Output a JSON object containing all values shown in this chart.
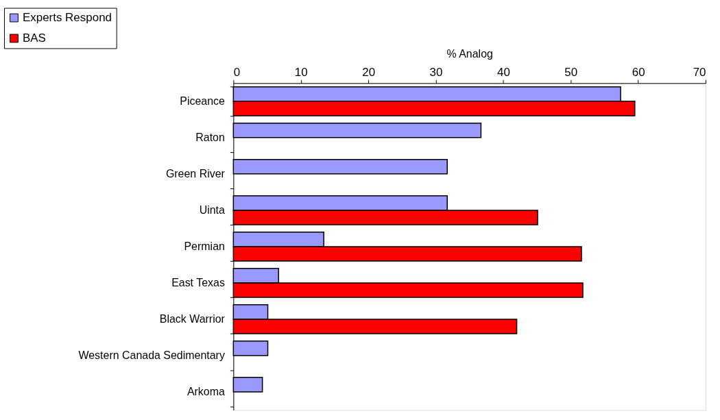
{
  "chart_data": {
    "type": "bar",
    "orientation": "horizontal",
    "xlabel": "% Analog",
    "categories": [
      "Piceance",
      "Raton",
      "Green River",
      "Uinta",
      "Permian",
      "East Texas",
      "Black Warrior",
      "Western Canada Sedimentary",
      "Arkoma"
    ],
    "series": [
      {
        "name": "Experts Respond",
        "color": "#9999ff",
        "values": [
          57.4,
          36.7,
          31.7,
          31.7,
          13.4,
          6.7,
          5.1,
          5.1,
          4.3
        ]
      },
      {
        "name": "BAS",
        "color": "#ff0000",
        "values": [
          59.5,
          null,
          null,
          45.1,
          51.6,
          51.8,
          42.0,
          null,
          null
        ]
      }
    ],
    "xlim": [
      0,
      70
    ],
    "xticks": [
      0,
      10,
      20,
      30,
      40,
      50,
      60,
      70
    ],
    "grid": false,
    "legend": "top left"
  }
}
